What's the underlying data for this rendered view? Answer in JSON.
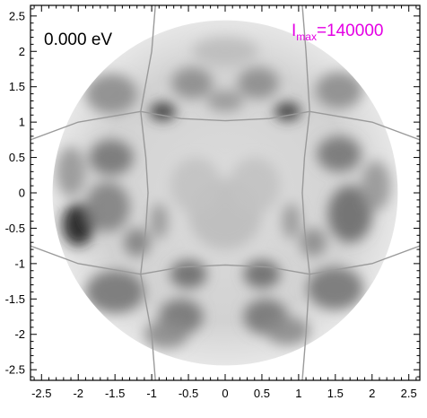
{
  "chart_data": {
    "type": "heatmap",
    "title": "",
    "xlabel": "",
    "ylabel": "",
    "xlim": [
      -2.65,
      2.65
    ],
    "ylim": [
      -2.65,
      2.65
    ],
    "x_ticks": [
      "-2.5",
      "-2",
      "-1.5",
      "-1",
      "-0.5",
      "0",
      "0.5",
      "1",
      "1.5",
      "2",
      "2.5"
    ],
    "y_ticks": [
      "2.5",
      "2",
      "1.5",
      "1",
      "0.5",
      "0",
      "-0.5",
      "-1",
      "-1.5",
      "-2",
      "-2.5"
    ],
    "x_tick_values": [
      -2.5,
      -2,
      -1.5,
      -1,
      -0.5,
      0,
      0.5,
      1,
      1.5,
      2,
      2.5
    ],
    "y_tick_values": [
      2.5,
      2,
      1.5,
      1,
      0.5,
      0,
      -0.5,
      -1,
      -1.5,
      -2,
      -2.5
    ],
    "minor_tick_step": 0.1,
    "energy_annotation": "0.000 eV",
    "imax_annotation": {
      "base": "I",
      "subscript": "max",
      "value": "=140000"
    },
    "color_scale": "grayscale",
    "pattern_radius": 2.35,
    "zone_boundaries": [
      {
        "name": "top",
        "points": [
          [
            -0.95,
            2.65
          ],
          [
            -1.0,
            2.0
          ],
          [
            -1.15,
            1.15
          ],
          [
            -0.6,
            1.05
          ],
          [
            0,
            1.02
          ],
          [
            0.6,
            1.05
          ],
          [
            1.15,
            1.15
          ],
          [
            1.1,
            2.0
          ],
          [
            1.05,
            2.65
          ]
        ]
      },
      {
        "name": "bottom",
        "points": [
          [
            -0.95,
            -2.65
          ],
          [
            -1.0,
            -2.0
          ],
          [
            -1.15,
            -1.15
          ],
          [
            -0.6,
            -1.05
          ],
          [
            0,
            -1.02
          ],
          [
            0.6,
            -1.05
          ],
          [
            1.15,
            -1.15
          ],
          [
            1.1,
            -2.0
          ],
          [
            1.05,
            -2.65
          ]
        ]
      },
      {
        "name": "left",
        "points": [
          [
            -2.65,
            0.75
          ],
          [
            -2.0,
            1.0
          ],
          [
            -1.15,
            1.15
          ],
          [
            -1.08,
            0.5
          ],
          [
            -1.05,
            0
          ],
          [
            -1.08,
            -0.5
          ],
          [
            -1.15,
            -1.15
          ],
          [
            -2.0,
            -1.0
          ],
          [
            -2.65,
            -0.75
          ]
        ]
      },
      {
        "name": "right",
        "points": [
          [
            2.65,
            0.75
          ],
          [
            2.0,
            1.0
          ],
          [
            1.15,
            1.15
          ],
          [
            1.08,
            0.5
          ],
          [
            1.05,
            0
          ],
          [
            1.08,
            -0.5
          ],
          [
            1.15,
            -1.15
          ],
          [
            2.0,
            -1.0
          ],
          [
            2.65,
            -0.75
          ]
        ]
      }
    ],
    "features": [
      {
        "x": -2.0,
        "y": -0.45,
        "rx": 0.22,
        "ry": 0.3,
        "intensity": 0.85
      },
      {
        "x": -1.55,
        "y": 0.5,
        "rx": 0.3,
        "ry": 0.25,
        "intensity": 0.45
      },
      {
        "x": -1.6,
        "y": -0.2,
        "rx": 0.3,
        "ry": 0.35,
        "intensity": 0.4
      },
      {
        "x": -1.5,
        "y": -1.4,
        "rx": 0.4,
        "ry": 0.3,
        "intensity": 0.45
      },
      {
        "x": -1.55,
        "y": 1.4,
        "rx": 0.35,
        "ry": 0.28,
        "intensity": 0.35
      },
      {
        "x": 1.55,
        "y": 0.55,
        "rx": 0.3,
        "ry": 0.25,
        "intensity": 0.45
      },
      {
        "x": 1.7,
        "y": -0.3,
        "rx": 0.3,
        "ry": 0.4,
        "intensity": 0.5
      },
      {
        "x": 1.5,
        "y": -1.35,
        "rx": 0.38,
        "ry": 0.3,
        "intensity": 0.45
      },
      {
        "x": 1.55,
        "y": 1.45,
        "rx": 0.32,
        "ry": 0.26,
        "intensity": 0.35
      },
      {
        "x": -0.85,
        "y": 1.15,
        "rx": 0.18,
        "ry": 0.13,
        "intensity": 0.75
      },
      {
        "x": 0.85,
        "y": 1.15,
        "rx": 0.18,
        "ry": 0.13,
        "intensity": 0.75
      },
      {
        "x": -0.45,
        "y": 1.55,
        "rx": 0.28,
        "ry": 0.22,
        "intensity": 0.35
      },
      {
        "x": 0.45,
        "y": 1.55,
        "rx": 0.28,
        "ry": 0.22,
        "intensity": 0.35
      },
      {
        "x": 0.0,
        "y": 1.3,
        "rx": 0.25,
        "ry": 0.15,
        "intensity": 0.3
      },
      {
        "x": -0.5,
        "y": -1.15,
        "rx": 0.25,
        "ry": 0.2,
        "intensity": 0.5
      },
      {
        "x": 0.5,
        "y": -1.15,
        "rx": 0.25,
        "ry": 0.2,
        "intensity": 0.5
      },
      {
        "x": -0.6,
        "y": -1.75,
        "rx": 0.3,
        "ry": 0.25,
        "intensity": 0.45
      },
      {
        "x": 0.55,
        "y": -1.75,
        "rx": 0.3,
        "ry": 0.25,
        "intensity": 0.45
      },
      {
        "x": -0.8,
        "y": -2.0,
        "rx": 0.3,
        "ry": 0.2,
        "intensity": 0.35
      },
      {
        "x": 0.85,
        "y": -1.95,
        "rx": 0.3,
        "ry": 0.2,
        "intensity": 0.35
      },
      {
        "x": -0.9,
        "y": -0.4,
        "rx": 0.12,
        "ry": 0.25,
        "intensity": 0.3
      },
      {
        "x": 0.9,
        "y": -0.4,
        "rx": 0.12,
        "ry": 0.25,
        "intensity": 0.3
      },
      {
        "x": -1.2,
        "y": -0.7,
        "rx": 0.18,
        "ry": 0.2,
        "intensity": 0.4
      },
      {
        "x": 1.2,
        "y": -0.7,
        "rx": 0.18,
        "ry": 0.2,
        "intensity": 0.35
      },
      {
        "x": 0.0,
        "y": -0.3,
        "rx": 0.5,
        "ry": 0.5,
        "intensity": 0.12
      },
      {
        "x": -0.4,
        "y": 0.1,
        "rx": 0.35,
        "ry": 0.4,
        "intensity": 0.1
      },
      {
        "x": 0.4,
        "y": 0.1,
        "rx": 0.35,
        "ry": 0.4,
        "intensity": 0.1
      },
      {
        "x": -2.1,
        "y": 0.3,
        "rx": 0.2,
        "ry": 0.35,
        "intensity": 0.3
      },
      {
        "x": 2.05,
        "y": 0.1,
        "rx": 0.2,
        "ry": 0.35,
        "intensity": 0.3
      },
      {
        "x": 0.0,
        "y": 2.0,
        "rx": 0.45,
        "ry": 0.2,
        "intensity": 0.12
      }
    ]
  }
}
